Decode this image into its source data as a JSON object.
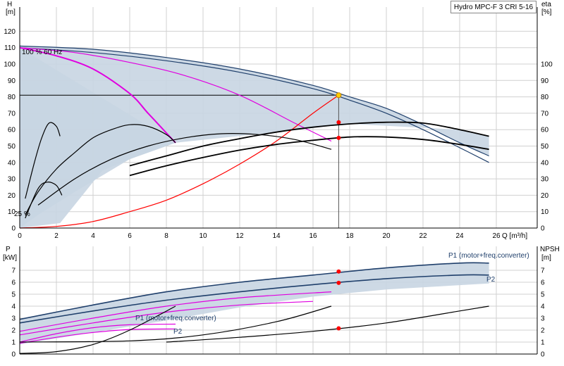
{
  "title": "Hydro MPC-F 3 CRI 5-16",
  "colors": {
    "envelope": "#c8d5e2",
    "max_curve": "#1f3f6b",
    "magenta": "#e000e0",
    "system": "#ff0000",
    "black": "#000000",
    "op_point": "#ff0000",
    "op_point_yellow": "#ffcc00"
  },
  "top_labels": {
    "y_left": "H",
    "y_left_unit": "[m]",
    "y_right": "eta",
    "y_right_unit": "[%]",
    "x_axis": "Q [m³/h]",
    "speed_max": "100 %",
    "hz_suffix": "60 Hz",
    "speed_min": "25 %"
  },
  "bottom_labels": {
    "y_left": "P",
    "y_left_unit": "[kW]",
    "y_right": "NPSH",
    "y_right_unit": "[m]",
    "p1_label_a": "P1 (motor+freq.converter)",
    "p2_label_a": "P2",
    "p1_label_b": "P1 (motor+freq.converter)",
    "p2_label_b": "P2"
  },
  "chart_data": [
    {
      "type": "line",
      "panel": "head-efficiency",
      "xlabel": "Q [m³/h]",
      "ylabel": "H [m]",
      "y2label": "eta [%]",
      "xlim": [
        0,
        26
      ],
      "ylim": [
        0,
        130
      ],
      "y2lim": [
        0,
        100
      ],
      "grid": true,
      "x_ticks": [
        0,
        2,
        4,
        6,
        8,
        10,
        12,
        14,
        16,
        18,
        20,
        22,
        24,
        26
      ],
      "y_ticks": [
        0,
        10,
        20,
        30,
        40,
        50,
        60,
        70,
        80,
        90,
        100,
        110,
        120
      ],
      "y2_ticks": [
        0,
        10,
        20,
        30,
        40,
        50,
        60,
        70,
        80,
        90,
        100
      ],
      "duty_point": {
        "Q": 17.4,
        "H": 81,
        "eta_total": 55,
        "eta_pump": 64.5
      },
      "series": [
        {
          "kind": "max-speed head (3 pumps)",
          "color": "navy",
          "x": [
            0,
            4,
            8,
            12,
            16,
            18,
            20,
            22,
            24,
            25.6
          ],
          "y": [
            111,
            109,
            104,
            97,
            87,
            80,
            73,
            63,
            52,
            44
          ]
        },
        {
          "kind": "head (3 pumps, lower edge)",
          "color": "navy",
          "x": [
            0,
            4,
            8,
            12,
            16,
            18,
            20,
            22,
            24,
            25.6
          ],
          "y": [
            110,
            107,
            102,
            95,
            85,
            78,
            70,
            60,
            49,
            40
          ]
        },
        {
          "kind": "2-pump head",
          "color": "magenta",
          "x": [
            0,
            3,
            6,
            9,
            12,
            15,
            17
          ],
          "y": [
            110,
            107,
            101,
            93,
            81,
            64,
            53
          ]
        },
        {
          "kind": "1-pump head",
          "color": "magenta",
          "x": [
            0,
            2,
            4,
            6,
            7,
            8,
            8.5
          ],
          "y": [
            110,
            105,
            97,
            82,
            70,
            58,
            52
          ]
        },
        {
          "kind": "system curve",
          "color": "red",
          "x": [
            0,
            2,
            4,
            6,
            8,
            10,
            12,
            14,
            16,
            17.4
          ],
          "y": [
            0,
            1,
            4,
            10,
            17,
            27,
            39,
            53,
            70,
            81
          ]
        },
        {
          "kind": "eta pump (3 pumps)",
          "color": "black",
          "y_axis": "eta",
          "x": [
            6,
            8,
            10,
            12,
            14,
            16,
            18,
            20,
            22,
            24,
            25.6
          ],
          "y": [
            38,
            44,
            50,
            54.5,
            58.5,
            61.5,
            63.5,
            64.5,
            64,
            60,
            56
          ]
        },
        {
          "kind": "eta total (3 pumps)",
          "color": "black",
          "y_axis": "eta",
          "x": [
            6,
            8,
            10,
            12,
            14,
            16,
            18,
            20,
            22,
            24,
            25.6
          ],
          "y": [
            32,
            38,
            43,
            47.5,
            51,
            53.5,
            55.5,
            55.5,
            54,
            51,
            48
          ]
        },
        {
          "kind": "eta (2 pumps)",
          "color": "black",
          "y_axis": "eta",
          "x": [
            1,
            3,
            5,
            7,
            9,
            11,
            13,
            15,
            17
          ],
          "y": [
            14,
            30,
            42,
            50,
            55,
            57.5,
            57,
            54,
            48
          ]
        },
        {
          "kind": "eta (1 pump)",
          "color": "black",
          "y_axis": "eta",
          "x": [
            0.3,
            1,
            2,
            3,
            4,
            5,
            6,
            7,
            8,
            8.5
          ],
          "y": [
            8,
            22,
            36,
            46,
            55,
            60,
            63,
            62,
            57,
            52
          ]
        },
        {
          "kind": "eta (1 pump, low speed)",
          "color": "black",
          "y_axis": "eta",
          "x": [
            0.3,
            0.8,
            1.2,
            1.6,
            2.0,
            2.2
          ],
          "y": [
            18,
            40,
            55,
            64,
            62,
            56
          ]
        },
        {
          "kind": "eta (small, low speed)",
          "color": "black",
          "y_axis": "eta",
          "x": [
            0.3,
            1.0,
            1.5,
            2.0,
            2.3
          ],
          "y": [
            6,
            24,
            28,
            26,
            20
          ]
        }
      ]
    },
    {
      "type": "line",
      "panel": "power-npsh",
      "xlabel": "Q [m³/h]",
      "ylabel": "P [kW]",
      "y2label": "NPSH [m]",
      "xlim": [
        0,
        26
      ],
      "ylim": [
        0,
        8
      ],
      "y2lim": [
        0,
        8
      ],
      "grid": true,
      "y_ticks": [
        0,
        1,
        2,
        3,
        4,
        5,
        6,
        7
      ],
      "y2_ticks": [
        0,
        1,
        2,
        3,
        4,
        5,
        6,
        7
      ],
      "duty_point": {
        "Q": 17.4,
        "P1": 6.9,
        "P2": 5.95,
        "NPSH": 2.15
      },
      "series": [
        {
          "kind": "P1 max (3 pumps)",
          "color": "navy",
          "x": [
            0,
            4,
            8,
            12,
            16,
            20,
            24,
            25.6
          ],
          "y": [
            2.9,
            4.1,
            5.2,
            6.0,
            6.6,
            7.2,
            7.6,
            7.6
          ]
        },
        {
          "kind": "P2 max (3 pumps)",
          "color": "navy",
          "x": [
            0,
            4,
            8,
            12,
            16,
            20,
            24,
            25.6
          ],
          "y": [
            2.6,
            3.6,
            4.5,
            5.2,
            5.8,
            6.3,
            6.6,
            6.6
          ]
        },
        {
          "kind": "P1 (2 pumps)",
          "color": "magenta",
          "x": [
            0,
            4,
            8,
            12,
            17
          ],
          "y": [
            1.9,
            3.0,
            4.0,
            4.7,
            5.2
          ]
        },
        {
          "kind": "P2 (2 pumps)",
          "color": "magenta",
          "x": [
            0,
            4,
            8,
            12,
            16
          ],
          "y": [
            1.6,
            2.6,
            3.5,
            4.1,
            4.4
          ]
        },
        {
          "kind": "P1 (1 pump)",
          "color": "magenta",
          "x": [
            0,
            2,
            4,
            6,
            8.5
          ],
          "y": [
            1.0,
            1.7,
            2.2,
            2.45,
            2.5
          ]
        },
        {
          "kind": "P2 (1 pump)",
          "color": "magenta",
          "x": [
            0,
            2,
            4,
            6,
            8.5
          ],
          "y": [
            0.9,
            1.4,
            1.8,
            2.05,
            2.1
          ]
        },
        {
          "kind": "NPSH (1 pump)",
          "color": "black",
          "x": [
            0,
            2,
            4,
            6,
            8.5
          ],
          "y": [
            0.05,
            0.2,
            0.8,
            2.0,
            4.0
          ]
        },
        {
          "kind": "NPSH (2 pumps)",
          "color": "black",
          "x": [
            0,
            6,
            10,
            14,
            17
          ],
          "y": [
            1.0,
            1.1,
            1.6,
            2.7,
            4.0
          ]
        },
        {
          "kind": "NPSH (3 pumps)",
          "color": "black",
          "x": [
            8,
            12,
            16,
            20,
            24,
            25.6
          ],
          "y": [
            1.0,
            1.4,
            1.9,
            2.6,
            3.6,
            4.0
          ]
        }
      ]
    }
  ]
}
